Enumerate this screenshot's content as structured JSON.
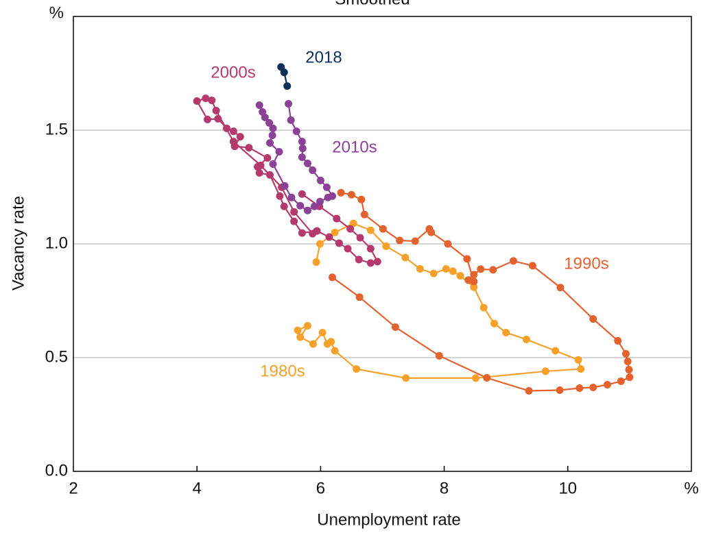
{
  "chart_data": {
    "type": "line",
    "subtitle": "Smoothed",
    "xlabel": "Unemployment rate",
    "ylabel": "Vacancy rate",
    "xlim": [
      2,
      12
    ],
    "ylim": [
      0,
      2
    ],
    "xticks": [
      2,
      4,
      6,
      8,
      10,
      {
        "value": 12,
        "label": "%"
      }
    ],
    "yticks": [
      {
        "value": 0,
        "label": "0.0"
      },
      0.5,
      {
        "value": 1,
        "label": "1.0"
      },
      1.5,
      {
        "value": 2,
        "label": "%"
      }
    ],
    "grid": true,
    "series": [
      {
        "name": "1980s",
        "color": "#f7a12a",
        "x": [
          5.63,
          5.79,
          5.67,
          5.88,
          6.03,
          6.11,
          6.17,
          6.23,
          6.58,
          7.38,
          8.51,
          9.64,
          10.21,
          10.17,
          9.8,
          9.33,
          9.0,
          8.81,
          8.64,
          8.48,
          8.26,
          8.14,
          8.03,
          7.83,
          7.61,
          7.37,
          7.06,
          6.81,
          6.53,
          6.23,
          5.99,
          5.93
        ],
        "y": [
          0.62,
          0.64,
          0.59,
          0.56,
          0.61,
          0.56,
          0.57,
          0.53,
          0.45,
          0.41,
          0.41,
          0.44,
          0.45,
          0.49,
          0.53,
          0.58,
          0.61,
          0.65,
          0.72,
          0.81,
          0.86,
          0.88,
          0.89,
          0.87,
          0.89,
          0.94,
          0.99,
          1.06,
          1.09,
          1.05,
          1.0,
          0.92
        ]
      },
      {
        "name": "1990s",
        "color": "#e4622e",
        "x": [
          6.19,
          6.63,
          7.21,
          7.92,
          8.69,
          9.37,
          9.87,
          10.19,
          10.41,
          10.64,
          10.86,
          11.0,
          10.99,
          10.97,
          10.94,
          10.81,
          10.41,
          9.88,
          9.43,
          9.12,
          8.79,
          8.59,
          8.48,
          8.39,
          8.48,
          8.37,
          8.06,
          7.79,
          7.76,
          7.53,
          7.28,
          7.01,
          6.71,
          6.66,
          6.5,
          6.33
        ],
        "y": [
          0.853,
          0.766,
          0.634,
          0.508,
          0.411,
          0.354,
          0.357,
          0.366,
          0.369,
          0.381,
          0.396,
          0.414,
          0.447,
          0.483,
          0.517,
          0.574,
          0.67,
          0.808,
          0.904,
          0.925,
          0.886,
          0.889,
          0.865,
          0.841,
          0.835,
          0.934,
          1.0,
          1.051,
          1.066,
          1.012,
          1.015,
          1.066,
          1.129,
          1.195,
          1.216,
          1.225
        ]
      },
      {
        "name": "2000s",
        "color": "#b5396c",
        "x": [
          5.7,
          5.98,
          6.26,
          6.48,
          6.64,
          6.81,
          6.92,
          6.81,
          6.62,
          6.44,
          6.3,
          6.14,
          5.94,
          5.7,
          5.57,
          5.41,
          5.34,
          5.18,
          5.01,
          4.98,
          5.14,
          4.84,
          4.61,
          4.7,
          4.59,
          4.48,
          4.34,
          4.17,
          4.0,
          4.14,
          4.24,
          4.31,
          4.59,
          5.03,
          5.37,
          5.57,
          5.87
        ],
        "y": [
          1.219,
          1.165,
          1.111,
          1.066,
          1.027,
          0.979,
          0.922,
          0.916,
          0.931,
          0.979,
          1.003,
          1.03,
          1.057,
          1.048,
          1.099,
          1.165,
          1.21,
          1.303,
          1.312,
          1.339,
          1.378,
          1.423,
          1.429,
          1.471,
          1.495,
          1.508,
          1.55,
          1.547,
          1.628,
          1.64,
          1.631,
          1.586,
          1.45,
          1.345,
          1.249,
          1.141,
          1.045
        ]
      },
      {
        "name": "2010s",
        "color": "#8a4196",
        "x": [
          5.01,
          5.06,
          5.1,
          5.17,
          5.23,
          5.22,
          5.18,
          5.33,
          5.23,
          5.42,
          5.53,
          5.67,
          5.79,
          5.9,
          5.99,
          6.12,
          6.19,
          6.1,
          6.0,
          5.87,
          5.79,
          5.7,
          5.71,
          5.7,
          5.61,
          5.52,
          5.48
        ],
        "y": [
          1.61,
          1.58,
          1.556,
          1.532,
          1.508,
          1.477,
          1.444,
          1.405,
          1.351,
          1.255,
          1.204,
          1.168,
          1.147,
          1.165,
          1.186,
          1.204,
          1.21,
          1.249,
          1.279,
          1.324,
          1.354,
          1.381,
          1.42,
          1.45,
          1.495,
          1.544,
          1.616
        ]
      },
      {
        "name": "2018",
        "color": "#0c2f57",
        "x": [
          5.36,
          5.41,
          5.46
        ],
        "y": [
          1.778,
          1.754,
          1.694
        ]
      }
    ]
  }
}
